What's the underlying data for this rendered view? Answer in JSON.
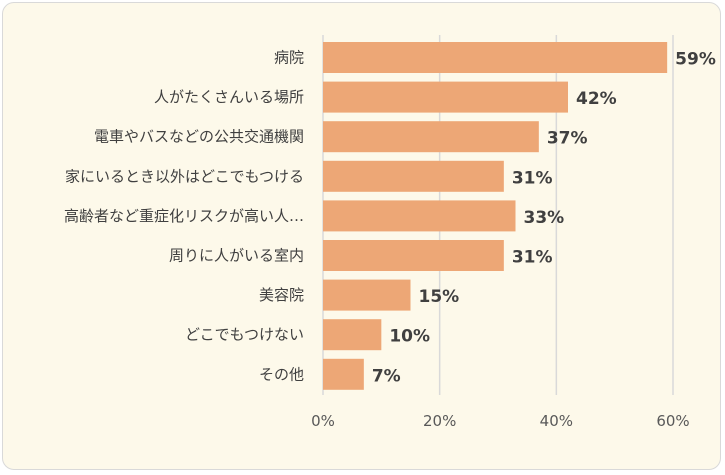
{
  "chart_data": {
    "type": "bar",
    "orientation": "horizontal",
    "categories": [
      "病院",
      "人がたくさんいる場所",
      "電車やバスなどの公共交通機関",
      "家にいるとき以外はどこでもつける",
      "高齢者など重症化リスクが高い人…",
      "周りに人がいる室内",
      "美容院",
      "どこでもつけない",
      "その他"
    ],
    "values": [
      59,
      42,
      37,
      31,
      33,
      31,
      15,
      10,
      7
    ],
    "value_labels": [
      "59%",
      "42%",
      "37%",
      "31%",
      "33%",
      "31%",
      "15%",
      "10%",
      "7%"
    ],
    "xlim": [
      0,
      60
    ],
    "xticks": [
      0,
      20,
      40,
      60
    ],
    "xtick_labels": [
      "0%",
      "20%",
      "40%",
      "60%"
    ],
    "grid": "vertical",
    "bar_color": "#eda776",
    "background_color": "#fdf9ea",
    "grid_color": "#d9d9d9"
  }
}
